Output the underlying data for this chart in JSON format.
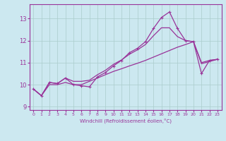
{
  "xlabel": "Windchill (Refroidissement éolien,°C)",
  "bg_color": "#cce8f0",
  "grid_color": "#aacccc",
  "line_color": "#993399",
  "xlim": [
    -0.5,
    23.5
  ],
  "ylim": [
    8.85,
    13.65
  ],
  "xticks": [
    0,
    1,
    2,
    3,
    4,
    5,
    6,
    7,
    8,
    9,
    10,
    11,
    12,
    13,
    14,
    15,
    16,
    17,
    18,
    19,
    20,
    21,
    22,
    23
  ],
  "yticks": [
    9,
    10,
    11,
    12,
    13
  ],
  "curve_marked_x": [
    0,
    1,
    2,
    3,
    4,
    5,
    6,
    7,
    8,
    9,
    10,
    11,
    12,
    13,
    14,
    15,
    16,
    17,
    18,
    19,
    20,
    21,
    22,
    23
  ],
  "curve_marked_y": [
    9.8,
    9.5,
    10.1,
    10.05,
    10.3,
    10.0,
    9.95,
    9.9,
    10.35,
    10.55,
    10.85,
    11.1,
    11.45,
    11.65,
    11.95,
    12.55,
    13.05,
    13.3,
    12.55,
    12.0,
    11.95,
    10.5,
    11.1,
    11.15
  ],
  "curve_upper_x": [
    0,
    1,
    2,
    3,
    4,
    5,
    6,
    7,
    8,
    9,
    10,
    11,
    12,
    13,
    14,
    15,
    16,
    17,
    18,
    19,
    20,
    21,
    22,
    23
  ],
  "curve_upper_y": [
    9.8,
    9.5,
    10.1,
    10.05,
    10.3,
    10.15,
    10.15,
    10.2,
    10.45,
    10.65,
    10.92,
    11.12,
    11.38,
    11.58,
    11.82,
    12.22,
    12.58,
    12.58,
    12.18,
    12.0,
    11.95,
    10.95,
    11.05,
    11.15
  ],
  "curve_lower_x": [
    0,
    1,
    2,
    3,
    4,
    5,
    6,
    7,
    8,
    9,
    10,
    11,
    12,
    13,
    14,
    15,
    16,
    17,
    18,
    19,
    20,
    21,
    22,
    23
  ],
  "curve_lower_y": [
    9.8,
    9.5,
    10.0,
    10.0,
    10.1,
    10.0,
    10.0,
    10.15,
    10.3,
    10.45,
    10.6,
    10.72,
    10.85,
    10.97,
    11.1,
    11.25,
    11.4,
    11.55,
    11.7,
    11.82,
    11.95,
    11.0,
    11.1,
    11.15
  ]
}
